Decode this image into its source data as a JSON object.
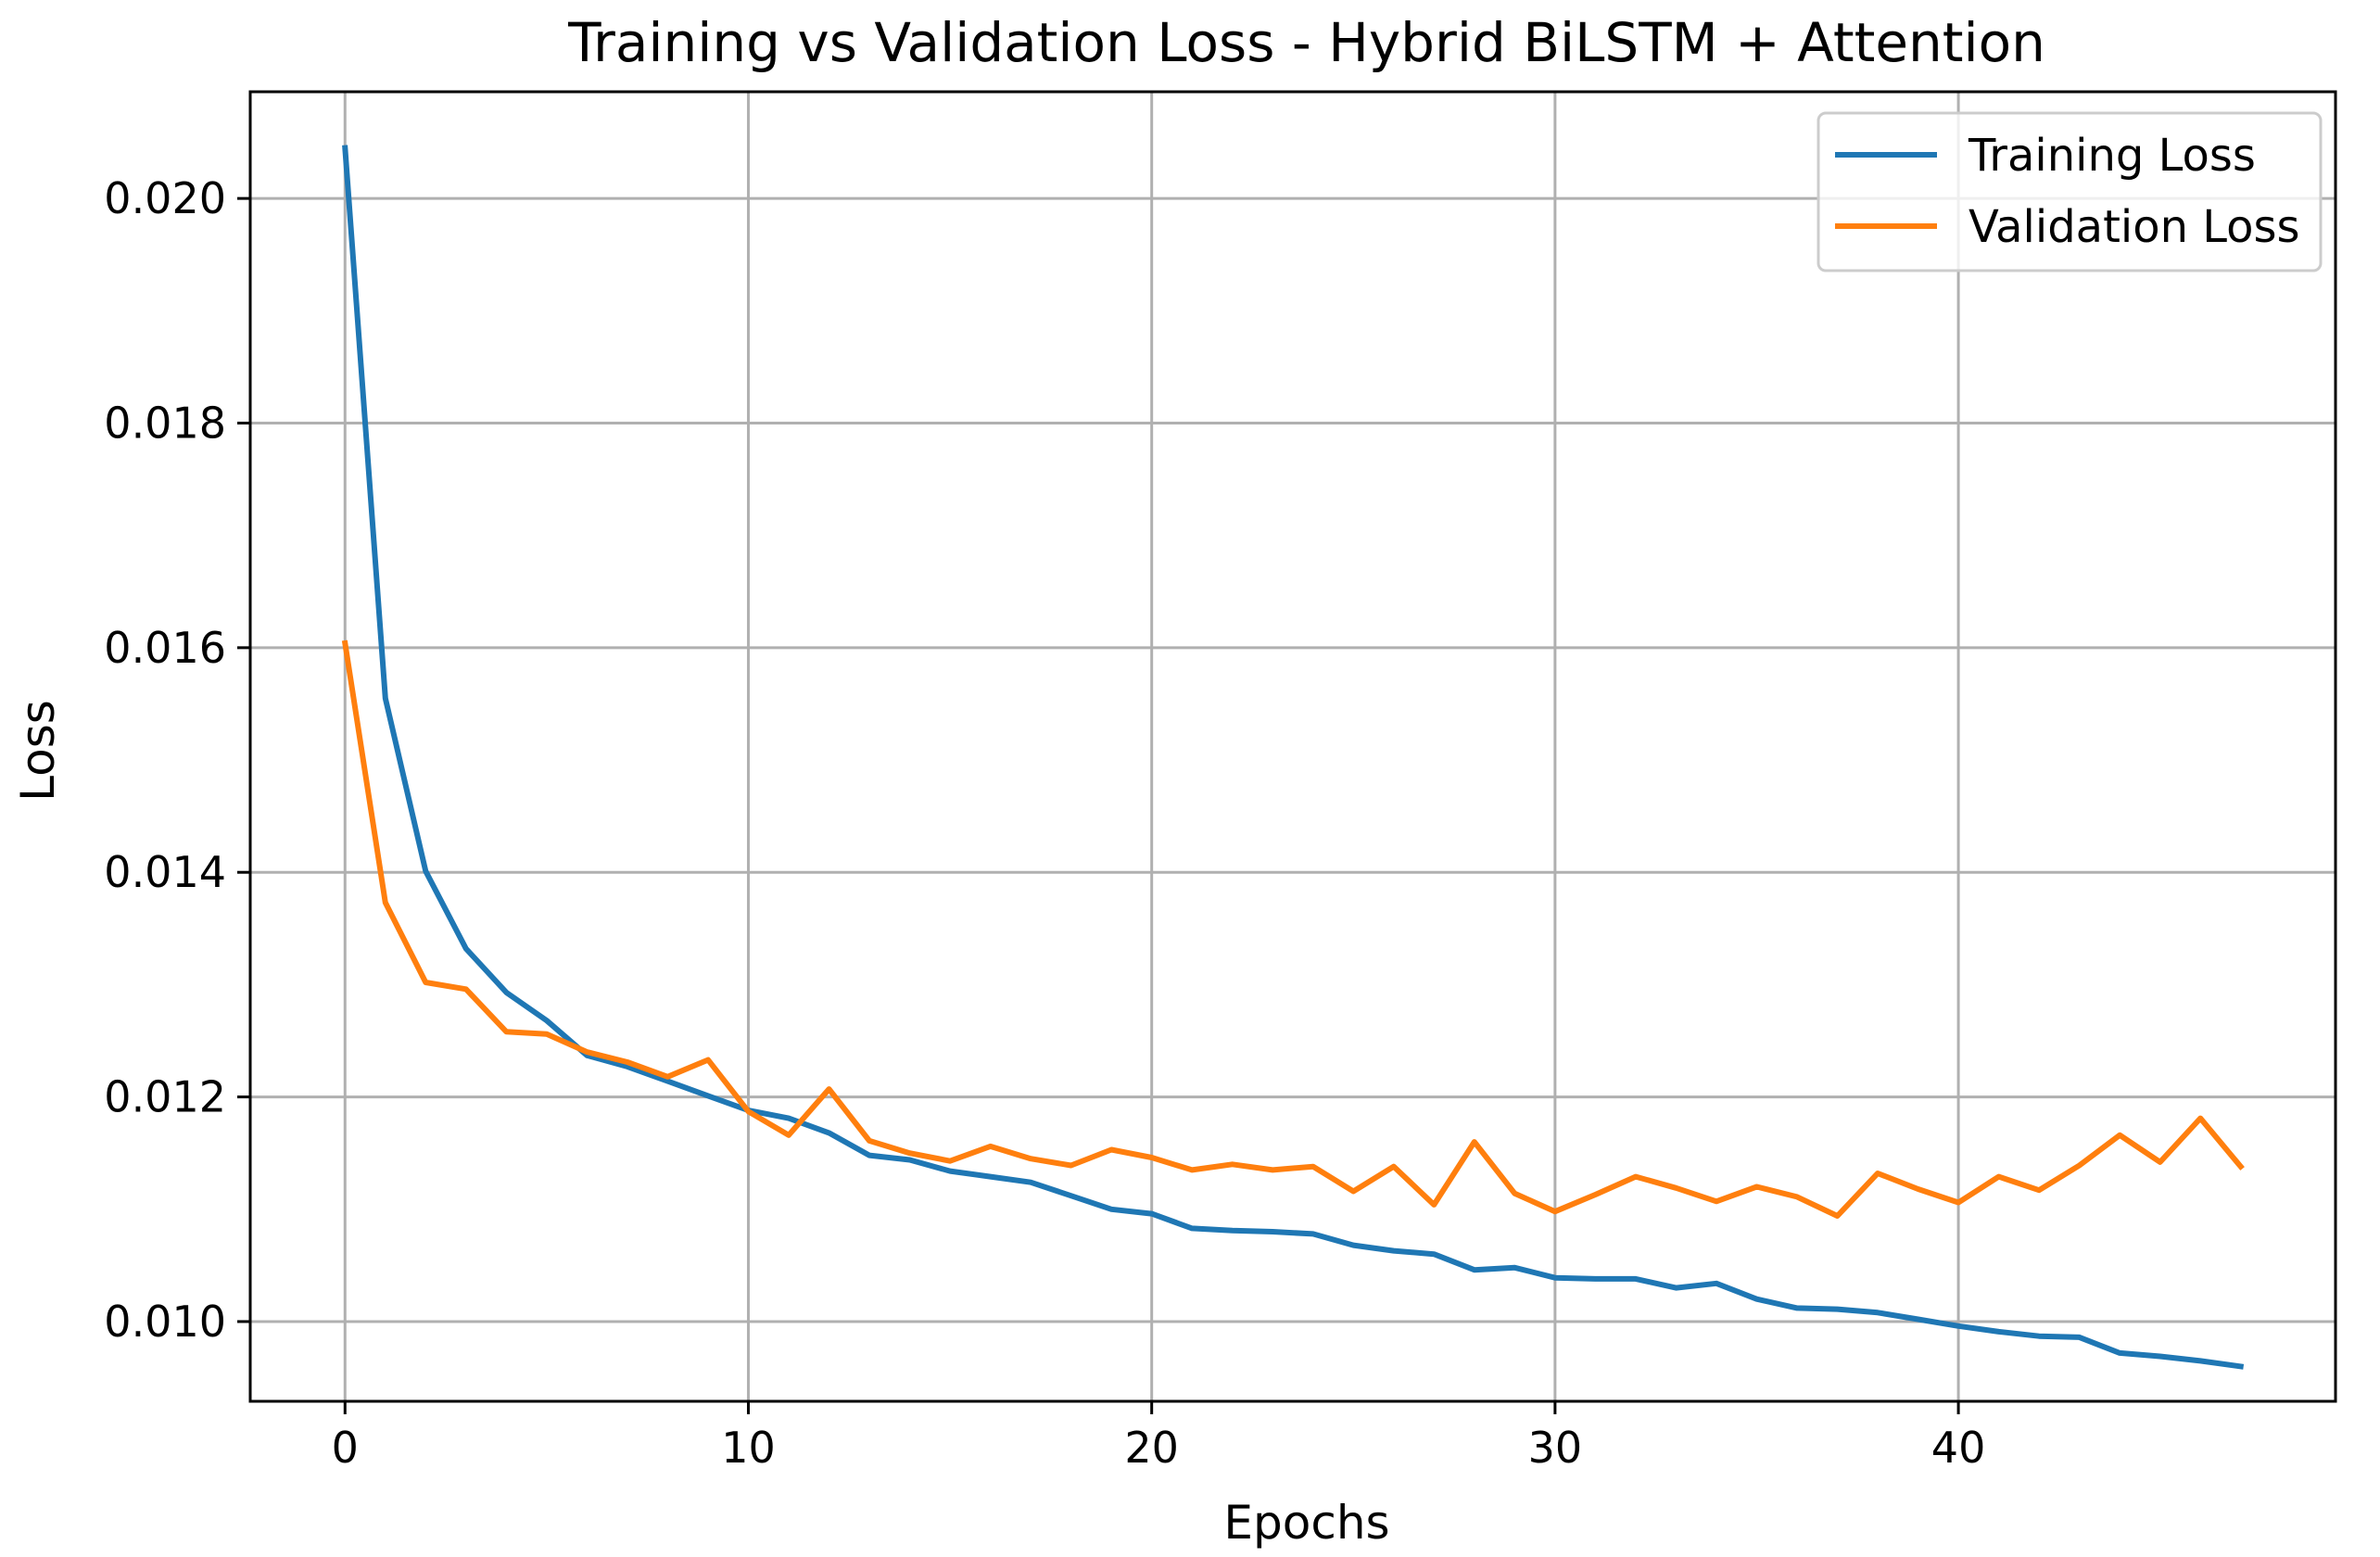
{
  "chart_data": {
    "type": "line",
    "title": "Training vs Validation Loss - Hybrid BiLSTM + Attention",
    "xlabel": "Epochs",
    "ylabel": "Loss",
    "xlim": [
      -2.35,
      49.35
    ],
    "ylim": [
      0.00929,
      0.02095
    ],
    "xticks": [
      0,
      10,
      20,
      30,
      40
    ],
    "xtick_labels": [
      "0",
      "10",
      "20",
      "30",
      "40"
    ],
    "yticks": [
      0.01,
      0.012,
      0.014,
      0.016,
      0.018,
      0.02
    ],
    "ytick_labels": [
      "0.010",
      "0.012",
      "0.014",
      "0.016",
      "0.018",
      "0.020"
    ],
    "grid": true,
    "legend_position": "top-right",
    "x": [
      0,
      1,
      2,
      3,
      4,
      5,
      6,
      7,
      8,
      9,
      10,
      11,
      12,
      13,
      14,
      15,
      16,
      17,
      18,
      19,
      20,
      21,
      22,
      23,
      24,
      25,
      26,
      27,
      28,
      29,
      30,
      31,
      32,
      33,
      34,
      35,
      36,
      37,
      38,
      39,
      40,
      41,
      42,
      43,
      44,
      45,
      46,
      47
    ],
    "series": [
      {
        "name": "Training Loss",
        "color": "#1f77b4",
        "values": [
          0.02045,
          0.01555,
          0.01401,
          0.01332,
          0.01293,
          0.01268,
          0.01237,
          0.01227,
          0.01214,
          0.01201,
          0.01188,
          0.01181,
          0.01168,
          0.01148,
          0.01144,
          0.01134,
          0.01129,
          0.01124,
          0.01112,
          0.011,
          0.01096,
          0.01083,
          0.01081,
          0.0108,
          0.01078,
          0.01068,
          0.01063,
          0.0106,
          0.01046,
          0.01048,
          0.01039,
          0.01038,
          0.01038,
          0.0103,
          0.01034,
          0.0102,
          0.01012,
          0.01011,
          0.01008,
          0.01002,
          0.00996,
          0.00991,
          0.00987,
          0.00986,
          0.00972,
          0.00969,
          0.00965,
          0.0096
        ]
      },
      {
        "name": "Validation Loss",
        "color": "#ff7f0e",
        "values": [
          0.01604,
          0.01373,
          0.01302,
          0.01296,
          0.01258,
          0.01256,
          0.0124,
          0.01231,
          0.01218,
          0.01233,
          0.01187,
          0.01166,
          0.01207,
          0.01161,
          0.0115,
          0.01143,
          0.01156,
          0.01145,
          0.01139,
          0.01153,
          0.01146,
          0.01135,
          0.0114,
          0.01135,
          0.01138,
          0.01116,
          0.01138,
          0.01104,
          0.0116,
          0.01114,
          0.01098,
          0.01113,
          0.01129,
          0.01119,
          0.01107,
          0.0112,
          0.01111,
          0.01094,
          0.01132,
          0.01118,
          0.01106,
          0.01129,
          0.01117,
          0.01139,
          0.01166,
          0.01142,
          0.01181,
          0.01138
        ]
      }
    ]
  }
}
